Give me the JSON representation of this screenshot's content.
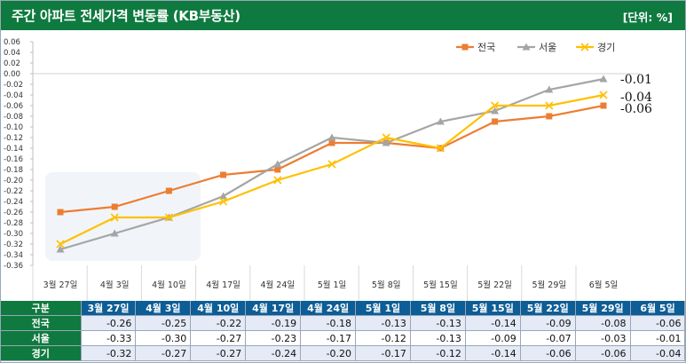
{
  "header": {
    "title": "주간 아파트 전세가격 변동률 (KB부동산)",
    "unit": "[단위: %]"
  },
  "table": {
    "corner_label": "구분"
  },
  "chart_data": {
    "type": "line",
    "categories": [
      "3월 27일",
      "4월 3일",
      "4월 10일",
      "4월 17일",
      "4월 24일",
      "5월 1일",
      "5월 8일",
      "5월 15일",
      "5월 22일",
      "5월 29일",
      "6월 5일"
    ],
    "series": [
      {
        "name": "전국",
        "color": "#ed7d31",
        "marker": "square",
        "values": [
          -0.26,
          -0.25,
          -0.22,
          -0.19,
          -0.18,
          -0.13,
          -0.13,
          -0.14,
          -0.09,
          -0.08,
          -0.06
        ]
      },
      {
        "name": "서울",
        "color": "#a5a5a5",
        "marker": "triangle",
        "values": [
          -0.33,
          -0.3,
          -0.27,
          -0.23,
          -0.17,
          -0.12,
          -0.13,
          -0.09,
          -0.07,
          -0.03,
          -0.01
        ]
      },
      {
        "name": "경기",
        "color": "#ffc000",
        "marker": "x",
        "values": [
          -0.32,
          -0.27,
          -0.27,
          -0.24,
          -0.2,
          -0.17,
          -0.12,
          -0.14,
          -0.06,
          -0.06,
          -0.04
        ]
      }
    ],
    "ylim": [
      -0.36,
      0.06
    ],
    "ystep": 0.02,
    "grid": false,
    "legend": "top-right",
    "end_labels": [
      "-0.01",
      "-0.04",
      "-0.06"
    ]
  }
}
